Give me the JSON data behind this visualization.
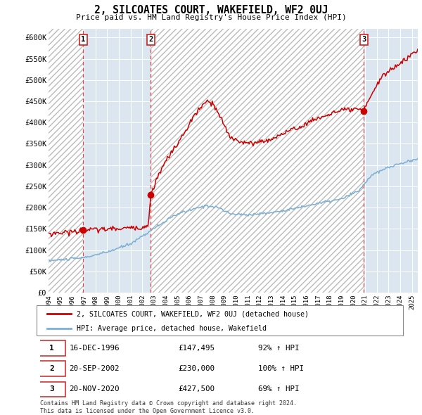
{
  "title": "2, SILCOATES COURT, WAKEFIELD, WF2 0UJ",
  "subtitle": "Price paid vs. HM Land Registry's House Price Index (HPI)",
  "background_color": "#ffffff",
  "plot_bg_color": "#dce6f1",
  "grid_color": "#ffffff",
  "red_line_color": "#cc0000",
  "blue_line_color": "#7bafd4",
  "sale_marker_color": "#cc0000",
  "sale_dashed_color": "#cc0000",
  "ylim": [
    0,
    620000
  ],
  "yticks": [
    0,
    50000,
    100000,
    150000,
    200000,
    250000,
    300000,
    350000,
    400000,
    450000,
    500000,
    550000,
    600000
  ],
  "ytick_labels": [
    "£0",
    "£50K",
    "£100K",
    "£150K",
    "£200K",
    "£250K",
    "£300K",
    "£350K",
    "£400K",
    "£450K",
    "£500K",
    "£550K",
    "£600K"
  ],
  "xlim": [
    1994.0,
    2025.5
  ],
  "sale_dates": [
    1996.96,
    2002.72,
    2020.9
  ],
  "sale_prices": [
    147495,
    230000,
    427500
  ],
  "sale_labels": [
    "1",
    "2",
    "3"
  ],
  "legend_entries": [
    "2, SILCOATES COURT, WAKEFIELD, WF2 0UJ (detached house)",
    "HPI: Average price, detached house, Wakefield"
  ],
  "table_rows": [
    [
      "1",
      "16-DEC-1996",
      "£147,495",
      "92% ↑ HPI"
    ],
    [
      "2",
      "20-SEP-2002",
      "£230,000",
      "100% ↑ HPI"
    ],
    [
      "3",
      "20-NOV-2020",
      "£427,500",
      "69% ↑ HPI"
    ]
  ],
  "footer": "Contains HM Land Registry data © Crown copyright and database right 2024.\nThis data is licensed under the Open Government Licence v3.0."
}
